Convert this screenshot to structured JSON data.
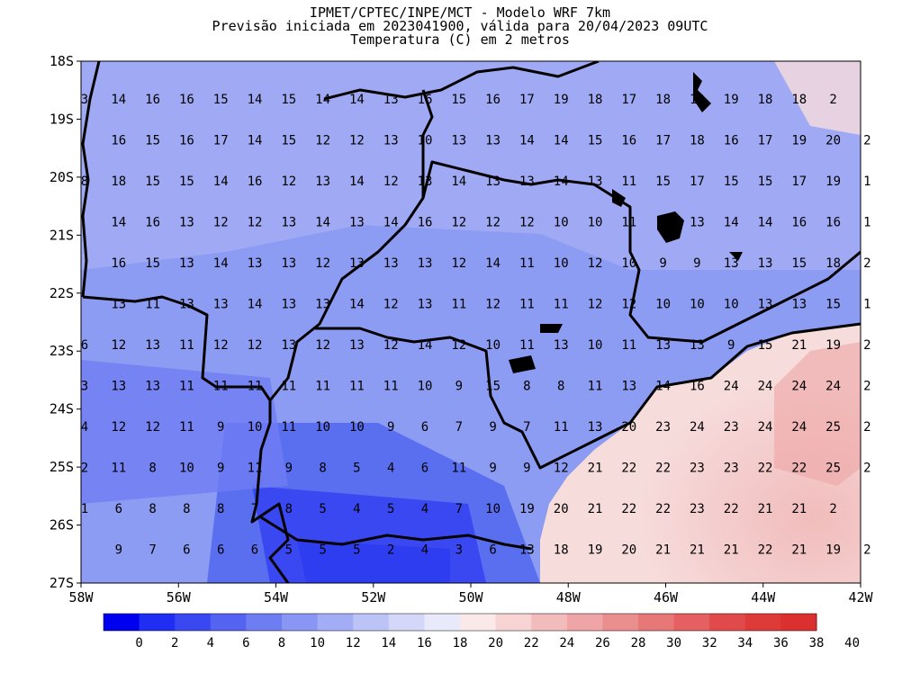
{
  "title": {
    "line1": "IPMET/CPTEC/INPE/MCT - Modelo WRF 7km",
    "line2": "Previsão iniciada em 2023041900, válida para 20/04/2023 09UTC",
    "line3": "Temperatura (C) em 2 metros"
  },
  "map": {
    "lat_labels": [
      "18S",
      "19S",
      "20S",
      "21S",
      "22S",
      "23S",
      "24S",
      "25S",
      "26S",
      "27S"
    ],
    "lon_labels": [
      "58W",
      "56W",
      "54W",
      "52W",
      "50W",
      "48W",
      "46W",
      "44W",
      "42W"
    ],
    "lat_range": [
      -27,
      -18
    ],
    "lon_range": [
      -58,
      -42
    ],
    "grid_rows": [
      [
        "3",
        "14",
        "16",
        "16",
        "15",
        "14",
        "15",
        "14",
        "14",
        "13",
        "16",
        "15",
        "16",
        "17",
        "19",
        "18",
        "17",
        "18",
        "19",
        "19",
        "18",
        "18",
        "2"
      ],
      [
        "",
        "16",
        "15",
        "16",
        "17",
        "14",
        "15",
        "12",
        "12",
        "13",
        "10",
        "13",
        "13",
        "14",
        "14",
        "15",
        "16",
        "17",
        "18",
        "16",
        "17",
        "19",
        "20",
        "2"
      ],
      [
        "8",
        "18",
        "15",
        "15",
        "14",
        "16",
        "12",
        "13",
        "14",
        "12",
        "13",
        "14",
        "13",
        "13",
        "14",
        "13",
        "11",
        "15",
        "17",
        "15",
        "15",
        "17",
        "19",
        "1"
      ],
      [
        "",
        "14",
        "16",
        "13",
        "12",
        "12",
        "13",
        "14",
        "13",
        "14",
        "16",
        "12",
        "12",
        "12",
        "10",
        "10",
        "11",
        "13",
        "13",
        "14",
        "14",
        "16",
        "16",
        "1"
      ],
      [
        "",
        "16",
        "15",
        "13",
        "14",
        "13",
        "13",
        "12",
        "13",
        "13",
        "13",
        "12",
        "14",
        "11",
        "10",
        "12",
        "10",
        "9",
        "9",
        "13",
        "13",
        "15",
        "18",
        "2"
      ],
      [
        "",
        "13",
        "11",
        "13",
        "13",
        "14",
        "13",
        "13",
        "14",
        "12",
        "13",
        "11",
        "12",
        "11",
        "11",
        "12",
        "12",
        "10",
        "10",
        "10",
        "13",
        "13",
        "15",
        "1"
      ],
      [
        "6",
        "12",
        "13",
        "11",
        "12",
        "12",
        "13",
        "12",
        "13",
        "12",
        "14",
        "12",
        "10",
        "11",
        "13",
        "10",
        "11",
        "13",
        "13",
        "9",
        "15",
        "21",
        "19",
        "2"
      ],
      [
        "3",
        "13",
        "13",
        "11",
        "11",
        "11",
        "11",
        "11",
        "11",
        "11",
        "10",
        "9",
        "15",
        "8",
        "8",
        "11",
        "13",
        "14",
        "16",
        "24",
        "24",
        "24",
        "24",
        "2"
      ],
      [
        "4",
        "12",
        "12",
        "11",
        "9",
        "10",
        "11",
        "10",
        "10",
        "9",
        "6",
        "7",
        "9",
        "7",
        "11",
        "13",
        "20",
        "23",
        "24",
        "23",
        "24",
        "24",
        "25",
        "2"
      ],
      [
        "2",
        "11",
        "8",
        "10",
        "9",
        "11",
        "9",
        "8",
        "5",
        "4",
        "6",
        "11",
        "9",
        "9",
        "12",
        "21",
        "22",
        "22",
        "23",
        "23",
        "22",
        "22",
        "25",
        "2"
      ],
      [
        "1",
        "6",
        "8",
        "8",
        "8",
        "7",
        "8",
        "5",
        "4",
        "5",
        "4",
        "7",
        "10",
        "19",
        "20",
        "21",
        "22",
        "22",
        "23",
        "22",
        "21",
        "21",
        "2"
      ],
      [
        "",
        "9",
        "7",
        "6",
        "6",
        "6",
        "5",
        "5",
        "5",
        "2",
        "4",
        "3",
        "6",
        "13",
        "18",
        "19",
        "20",
        "21",
        "21",
        "21",
        "22",
        "21",
        "19",
        "2"
      ]
    ],
    "colors": {
      "cold_deep": "#2e3df0",
      "cold": "#5a6ef0",
      "cool": "#8c9cf2",
      "mild": "#c5ccf5",
      "warm_light": "#f7dcdc",
      "warm": "#f1bcbc",
      "boundary": "#000000"
    }
  },
  "colorbar": {
    "ticks": [
      "0",
      "2",
      "4",
      "6",
      "8",
      "10",
      "12",
      "14",
      "16",
      "18",
      "20",
      "22",
      "24",
      "26",
      "28",
      "30",
      "32",
      "34",
      "36",
      "38",
      "40"
    ],
    "colors": [
      "#0000f0",
      "#1f2ef2",
      "#3a48f2",
      "#5563f2",
      "#6f7df3",
      "#8a96f4",
      "#a3adf5",
      "#bcc3f6",
      "#d3d8f8",
      "#e8eafb",
      "#fbe9e9",
      "#f7d3d3",
      "#f3bcbc",
      "#efa5a5",
      "#eb8e8e",
      "#e87777",
      "#e56060",
      "#e14a4a",
      "#de3a3a",
      "#dc3030"
    ]
  }
}
